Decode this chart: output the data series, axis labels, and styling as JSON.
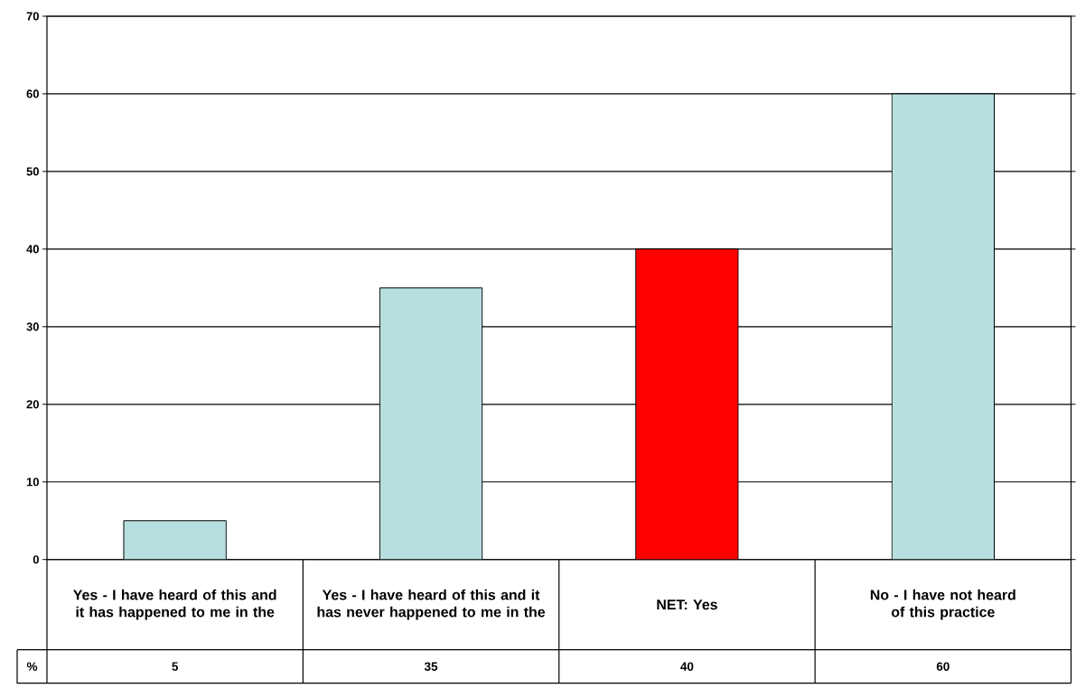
{
  "chart_data": {
    "type": "bar",
    "categories": [
      "Yes - I have heard of this and it has happened to me in the",
      "Yes - I have heard of this and it has never happened to me in the",
      "NET: Yes",
      "No - I have not heard of this practice"
    ],
    "series": [
      {
        "name": "%",
        "values": [
          5,
          35,
          40,
          60
        ],
        "colors": [
          "#b7dfe0",
          "#b7dfe0",
          "#ff0000",
          "#b7dfe0"
        ]
      }
    ],
    "ylim": [
      0,
      70
    ],
    "yticks": [
      0,
      10,
      20,
      30,
      40,
      50,
      60,
      70
    ],
    "grid": "y",
    "legend": "bottom left",
    "data_labels": true
  }
}
